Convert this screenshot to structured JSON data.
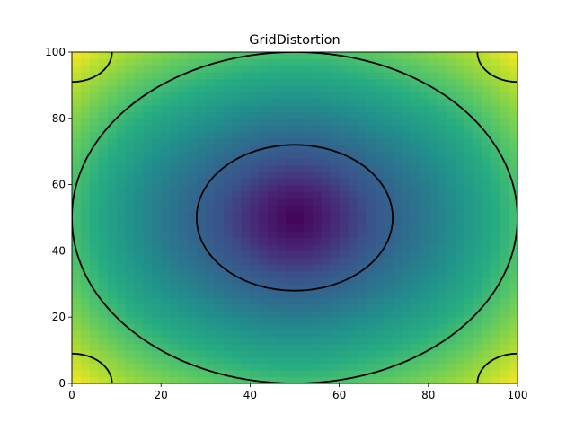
{
  "chart_data": {
    "type": "heatmap",
    "title": "GridDistortion",
    "xlabel": "",
    "ylabel": "",
    "xlim": [
      0,
      100
    ],
    "ylim": [
      0,
      100
    ],
    "xticks": [
      0,
      20,
      40,
      60,
      80,
      100
    ],
    "yticks": [
      0,
      20,
      40,
      60,
      80,
      100
    ],
    "grid": false,
    "legend": "none",
    "colormap": "viridis",
    "field": {
      "description": "radial distance from the center, with grid distortion along x",
      "center": [
        50,
        50
      ],
      "grid_resolution": 50,
      "value_range": [
        0,
        71
      ]
    },
    "contour_levels": [
      22,
      50,
      62
    ],
    "colors": {
      "low": "#440154",
      "mid": "#21918c",
      "high": "#fde725",
      "contour": "#000000"
    }
  }
}
